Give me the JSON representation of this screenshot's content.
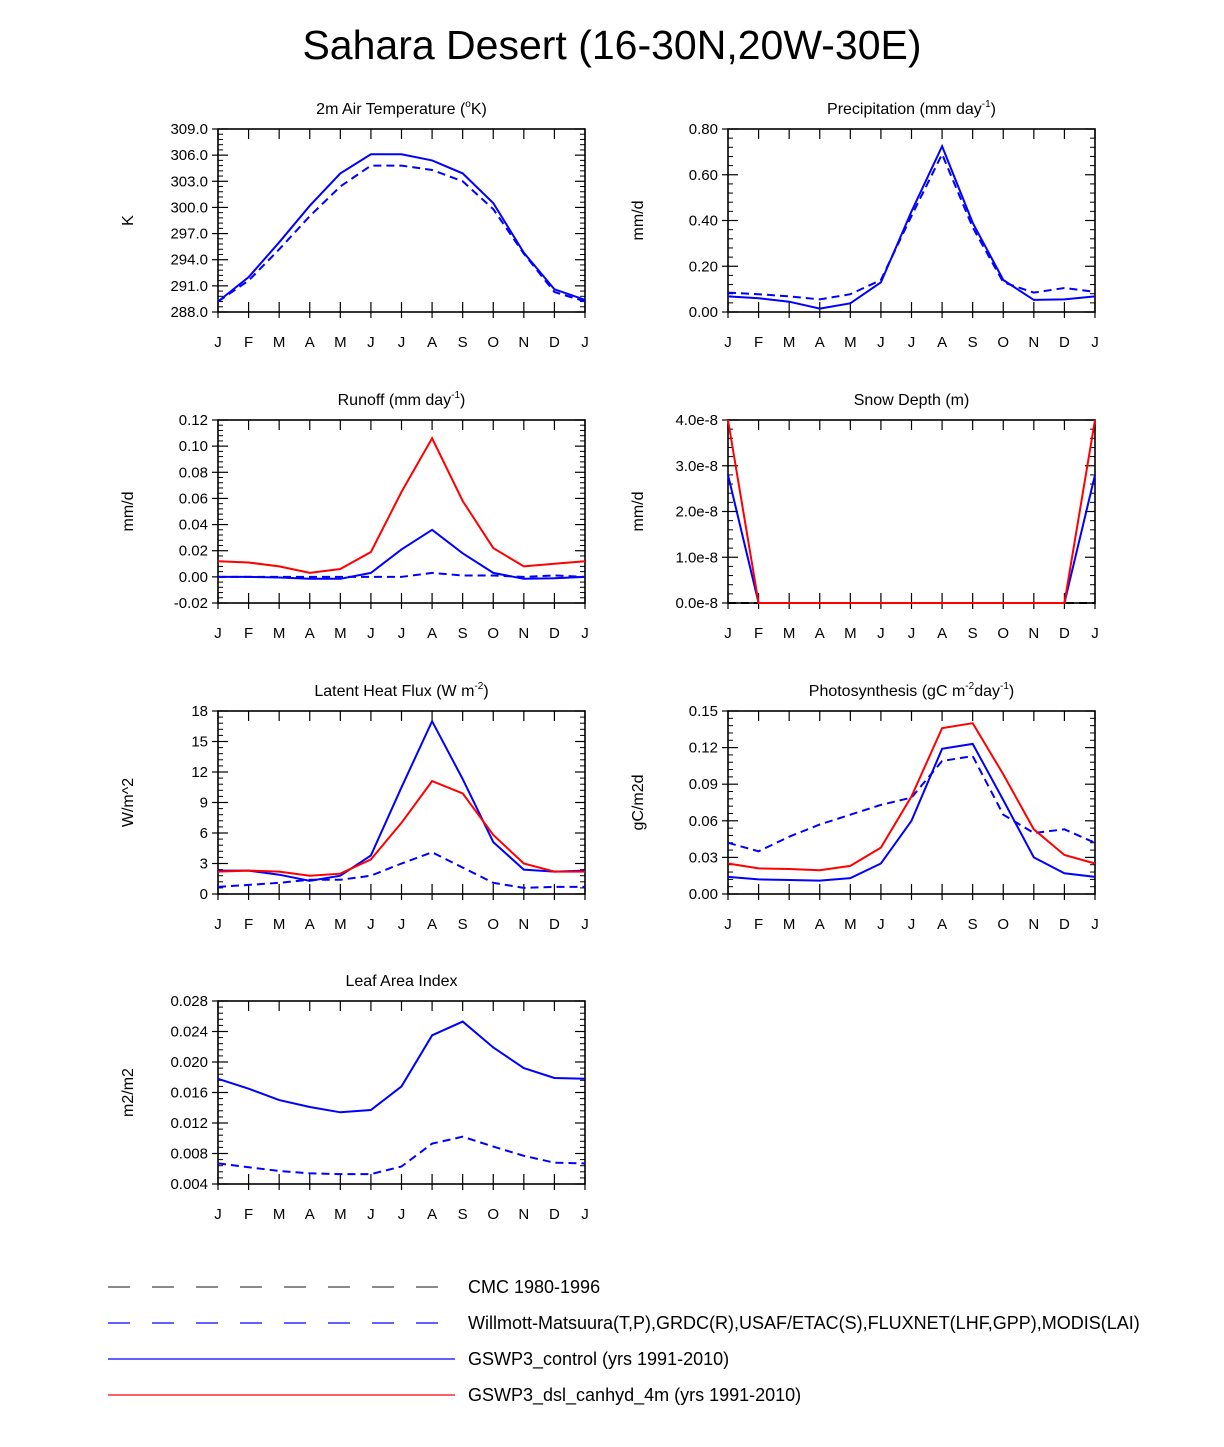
{
  "title": "Sahara Desert (16-30N,20W-30E)",
  "colors": {
    "obs_cmc": "#000000",
    "obs": "#0000ff",
    "control": "#0000ff",
    "experiment": "#ff0000"
  },
  "chart_data": [
    {
      "type": "line",
      "title": "2m Air Temperature (°K)",
      "ylabel": "K",
      "xlabel": "",
      "x": [
        "J",
        "F",
        "M",
        "A",
        "M",
        "J",
        "J",
        "A",
        "S",
        "O",
        "N",
        "D",
        "J"
      ],
      "ylim": [
        288.0,
        309.0
      ],
      "yticks": [
        "288.0",
        "291.0",
        "294.0",
        "297.0",
        "300.0",
        "303.0",
        "306.0",
        "309.0"
      ],
      "series": [
        {
          "name": "Willmott-Matsuura",
          "style": "dash",
          "color": "#0000ff",
          "values": [
            289.2,
            291.6,
            295.2,
            299.0,
            302.4,
            304.8,
            304.8,
            304.3,
            303.0,
            299.8,
            294.7,
            290.3,
            289.2
          ]
        },
        {
          "name": "GSWP3_control",
          "style": "solid",
          "color": "#0000ff",
          "values": [
            289.2,
            292.0,
            296.0,
            300.2,
            303.9,
            306.1,
            306.1,
            305.4,
            303.9,
            300.5,
            294.8,
            290.6,
            289.4
          ]
        }
      ]
    },
    {
      "type": "line",
      "title": "Precipitation (mm day-1)",
      "ylabel": "mm/d",
      "xlabel": "",
      "x": [
        "J",
        "F",
        "M",
        "A",
        "M",
        "J",
        "J",
        "A",
        "S",
        "O",
        "N",
        "D",
        "J"
      ],
      "ylim": [
        0.0,
        0.8
      ],
      "yticks": [
        "0.00",
        "0.20",
        "0.40",
        "0.60",
        "0.80"
      ],
      "series": [
        {
          "name": "Willmott-Matsuura",
          "style": "dash",
          "color": "#0000ff",
          "values": [
            0.085,
            0.078,
            0.068,
            0.055,
            0.078,
            0.14,
            0.42,
            0.69,
            0.37,
            0.13,
            0.085,
            0.105,
            0.088
          ]
        },
        {
          "name": "GSWP3_control",
          "style": "solid",
          "color": "#0000ff",
          "values": [
            0.068,
            0.06,
            0.045,
            0.015,
            0.038,
            0.13,
            0.44,
            0.725,
            0.39,
            0.14,
            0.053,
            0.055,
            0.068
          ]
        }
      ]
    },
    {
      "type": "line",
      "title": "Runoff (mm day-1)",
      "ylabel": "mm/d",
      "xlabel": "",
      "x": [
        "J",
        "F",
        "M",
        "A",
        "M",
        "J",
        "J",
        "A",
        "S",
        "O",
        "N",
        "D",
        "J"
      ],
      "ylim": [
        -0.02,
        0.12
      ],
      "yticks": [
        "-0.02",
        "0.00",
        "0.02",
        "0.04",
        "0.06",
        "0.08",
        "0.10",
        "0.12"
      ],
      "series": [
        {
          "name": "GRDC",
          "style": "dash",
          "color": "#0000ff",
          "values": [
            0.0,
            0.0,
            0.0,
            0.0,
            0.0,
            0.0,
            0.0,
            0.003,
            0.001,
            0.001,
            0.0,
            0.001,
            0.0
          ]
        },
        {
          "name": "GSWP3_control",
          "style": "solid",
          "color": "#0000ff",
          "values": [
            0.0,
            0.0,
            -0.0005,
            -0.0015,
            -0.0015,
            0.003,
            0.021,
            0.036,
            0.018,
            0.003,
            -0.0015,
            -0.001,
            0.0
          ]
        },
        {
          "name": "GSWP3_dsl_canhyd_4m",
          "style": "solid",
          "color": "#ff0000",
          "values": [
            0.012,
            0.011,
            0.008,
            0.003,
            0.006,
            0.019,
            0.065,
            0.106,
            0.058,
            0.022,
            0.008,
            0.01,
            0.012
          ]
        }
      ]
    },
    {
      "type": "line",
      "title": "Snow Depth (m)",
      "ylabel": "mm/d",
      "xlabel": "",
      "x": [
        "J",
        "F",
        "M",
        "A",
        "M",
        "J",
        "J",
        "A",
        "S",
        "O",
        "N",
        "D",
        "J"
      ],
      "ylim": [
        0.0,
        4e-08
      ],
      "yticks": [
        "0.0e-8",
        "1.0e-8",
        "2.0e-8",
        "3.0e-8",
        "4.0e-8"
      ],
      "series": [
        {
          "name": "CMC 1980-1996",
          "style": "dash",
          "color": "#000000",
          "values": [
            0,
            0,
            0,
            0,
            0,
            0,
            0,
            0,
            0,
            0,
            0,
            0,
            0
          ]
        },
        {
          "name": "GSWP3_control",
          "style": "solid",
          "color": "#0000ff",
          "values": [
            2.8e-08,
            0,
            0,
            0,
            0,
            0,
            0,
            0,
            0,
            0,
            0,
            0,
            2.8e-08
          ]
        },
        {
          "name": "GSWP3_dsl_canhyd_4m",
          "style": "solid",
          "color": "#ff0000",
          "values": [
            4e-08,
            0,
            0,
            0,
            0,
            0,
            0,
            0,
            0,
            0,
            0,
            0,
            4e-08
          ]
        }
      ]
    },
    {
      "type": "line",
      "title": "Latent Heat Flux (W m-2)",
      "ylabel": "W/m^2",
      "xlabel": "",
      "x": [
        "J",
        "F",
        "M",
        "A",
        "M",
        "J",
        "J",
        "A",
        "S",
        "O",
        "N",
        "D",
        "J"
      ],
      "ylim": [
        0,
        18
      ],
      "yticks": [
        "0",
        "3",
        "6",
        "9",
        "12",
        "15",
        "18"
      ],
      "series": [
        {
          "name": "FLUXNET",
          "style": "dash",
          "color": "#0000ff",
          "values": [
            0.7,
            0.9,
            1.1,
            1.4,
            1.4,
            1.8,
            3.0,
            4.1,
            2.6,
            1.1,
            0.6,
            0.7,
            0.7
          ]
        },
        {
          "name": "GSWP3_control",
          "style": "solid",
          "color": "#0000ff",
          "values": [
            2.3,
            2.3,
            1.9,
            1.3,
            1.8,
            3.8,
            10.5,
            17.0,
            11.3,
            5.1,
            2.4,
            2.2,
            2.3
          ]
        },
        {
          "name": "GSWP3_dsl_canhyd_4m",
          "style": "solid",
          "color": "#ff0000",
          "values": [
            2.2,
            2.3,
            2.2,
            1.8,
            2.0,
            3.4,
            7.0,
            11.1,
            9.9,
            5.8,
            3.0,
            2.2,
            2.2
          ]
        }
      ]
    },
    {
      "type": "line",
      "title": "Photosynthesis (gC m-2day-1)",
      "ylabel": "gC/m2d",
      "xlabel": "",
      "x": [
        "J",
        "F",
        "M",
        "A",
        "M",
        "J",
        "J",
        "A",
        "S",
        "O",
        "N",
        "D",
        "J"
      ],
      "ylim": [
        0.0,
        0.15
      ],
      "yticks": [
        "0.00",
        "0.03",
        "0.06",
        "0.09",
        "0.12",
        "0.15"
      ],
      "series": [
        {
          "name": "FLUXNET",
          "style": "dash",
          "color": "#0000ff",
          "values": [
            0.042,
            0.035,
            0.047,
            0.057,
            0.065,
            0.073,
            0.079,
            0.109,
            0.113,
            0.065,
            0.05,
            0.053,
            0.042
          ]
        },
        {
          "name": "GSWP3_control",
          "style": "solid",
          "color": "#0000ff",
          "values": [
            0.014,
            0.012,
            0.0115,
            0.011,
            0.013,
            0.025,
            0.06,
            0.119,
            0.123,
            0.077,
            0.03,
            0.017,
            0.014
          ]
        },
        {
          "name": "GSWP3_dsl_canhyd_4m",
          "style": "solid",
          "color": "#ff0000",
          "values": [
            0.025,
            0.021,
            0.0205,
            0.0195,
            0.023,
            0.038,
            0.08,
            0.136,
            0.14,
            0.098,
            0.053,
            0.032,
            0.025
          ]
        }
      ]
    },
    {
      "type": "line",
      "title": "Leaf Area Index",
      "ylabel": "m2/m2",
      "xlabel": "",
      "x": [
        "J",
        "F",
        "M",
        "A",
        "M",
        "J",
        "J",
        "A",
        "S",
        "O",
        "N",
        "D",
        "J"
      ],
      "ylim": [
        0.004,
        0.028
      ],
      "yticks": [
        "0.004",
        "0.008",
        "0.012",
        "0.016",
        "0.020",
        "0.024",
        "0.028"
      ],
      "series": [
        {
          "name": "MODIS",
          "style": "dash",
          "color": "#0000ff",
          "values": [
            0.0067,
            0.0062,
            0.0057,
            0.0054,
            0.0053,
            0.0053,
            0.0063,
            0.0093,
            0.0102,
            0.0089,
            0.0077,
            0.0068,
            0.0067
          ]
        },
        {
          "name": "GSWP3_control",
          "style": "solid",
          "color": "#0000ff",
          "values": [
            0.0178,
            0.0165,
            0.015,
            0.0141,
            0.0134,
            0.0137,
            0.0168,
            0.0235,
            0.0253,
            0.0219,
            0.0192,
            0.0179,
            0.0178
          ]
        }
      ]
    }
  ],
  "legend": [
    {
      "label": "CMC 1980-1996",
      "style": "dash-long",
      "color": "#444444"
    },
    {
      "label": "Willmott-Matsuura(T,P),GRDC(R),USAF/ETAC(S),FLUXNET(LHF,GPP),MODIS(LAI)",
      "style": "dash-long",
      "color": "#0000ff"
    },
    {
      "label": "GSWP3_control (yrs 1991-2010)",
      "style": "solid",
      "color": "#0000ff"
    },
    {
      "label": "GSWP3_dsl_canhyd_4m (yrs 1991-2010)",
      "style": "solid",
      "color": "#ff0000"
    }
  ]
}
